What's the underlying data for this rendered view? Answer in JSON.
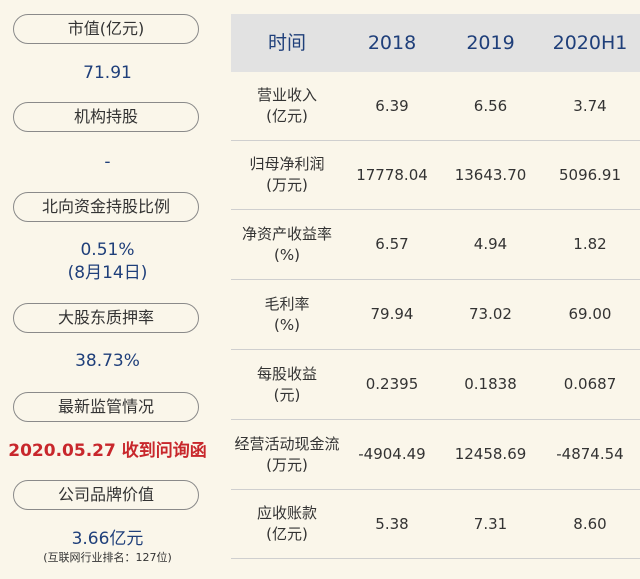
{
  "left": {
    "items": [
      {
        "label": "市值(亿元)",
        "value": "71.91"
      },
      {
        "label": "机构持股",
        "value": "-"
      },
      {
        "label": "北向资金持股比例",
        "value": "0.51%",
        "value2": "(8月14日)"
      },
      {
        "label": "大股东质押率",
        "value": "38.73%"
      },
      {
        "label": "最新监管情况",
        "value": "2020.05.27 收到问询函"
      },
      {
        "label": "公司品牌价值",
        "value": "3.66亿元",
        "note": "(互联网行业排名：127位)"
      }
    ]
  },
  "table": {
    "headers": [
      "时间",
      "2018",
      "2019",
      "2020H1"
    ],
    "rows": [
      {
        "label": [
          "营业收入",
          "(亿元)"
        ],
        "values": [
          "6.39",
          "6.56",
          "3.74"
        ]
      },
      {
        "label": [
          "归母净利润",
          "(万元)"
        ],
        "values": [
          "17778.04",
          "13643.70",
          "5096.91"
        ]
      },
      {
        "label": [
          "净资产收益率",
          "(%)"
        ],
        "values": [
          "6.57",
          "4.94",
          "1.82"
        ]
      },
      {
        "label": [
          "毛利率",
          "(%)"
        ],
        "values": [
          "79.94",
          "73.02",
          "69.00"
        ]
      },
      {
        "label": [
          "每股收益",
          "(元)"
        ],
        "values": [
          "0.2395",
          "0.1838",
          "0.0687"
        ]
      },
      {
        "label": [
          "经营活动现金流",
          "(万元)"
        ],
        "values": [
          "-4904.49",
          "12458.69",
          "-4874.54"
        ]
      },
      {
        "label": [
          "应收账款",
          "(亿元)"
        ],
        "values": [
          "5.38",
          "7.31",
          "8.60"
        ]
      }
    ]
  }
}
